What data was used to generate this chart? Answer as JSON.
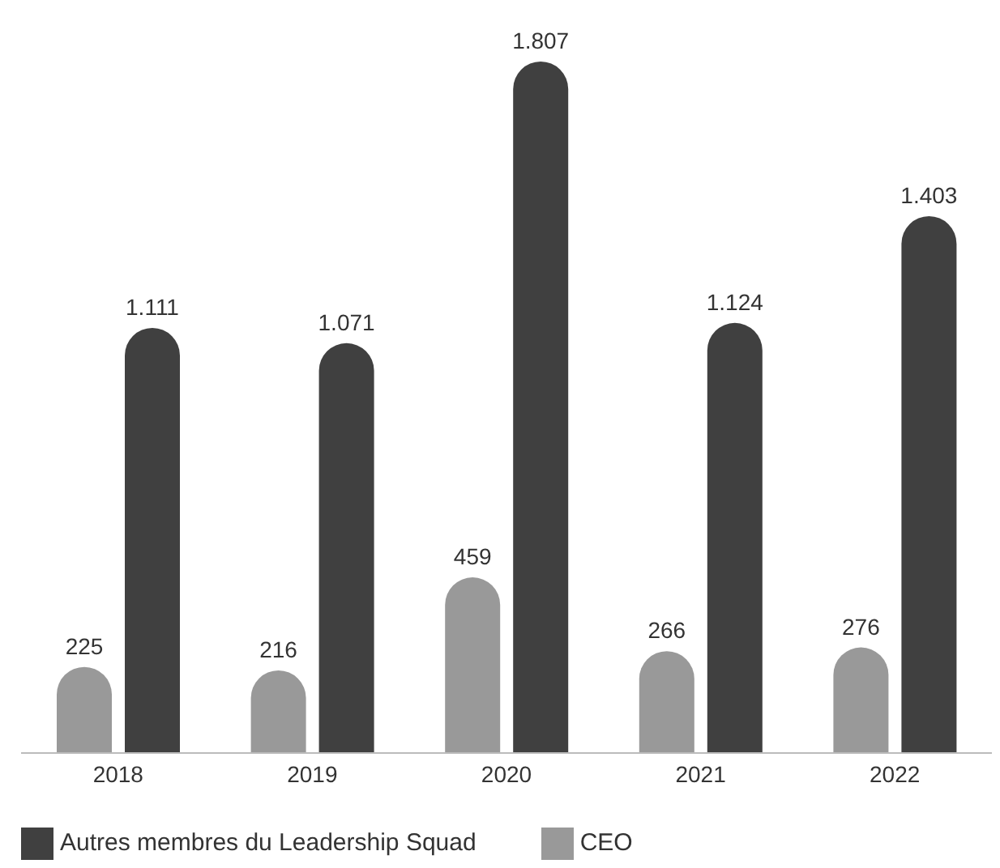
{
  "chart_data": {
    "type": "bar",
    "categories": [
      "2018",
      "2019",
      "2020",
      "2021",
      "2022"
    ],
    "series": [
      {
        "name": "CEO",
        "color": "#999999",
        "values": [
          225,
          216,
          459,
          266,
          276
        ],
        "value_labels": [
          "225",
          "216",
          "459",
          "266",
          "276"
        ]
      },
      {
        "name": "Autres membres du Leadership Squad",
        "color": "#404040",
        "values": [
          1111,
          1071,
          1807,
          1124,
          1403
        ],
        "value_labels": [
          "1.111",
          "1.071",
          "1.807",
          "1.124",
          "1.403"
        ]
      }
    ],
    "legend": "bottom left",
    "grid": false
  }
}
